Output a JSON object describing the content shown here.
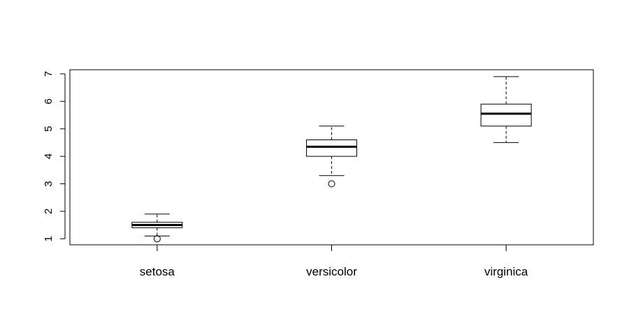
{
  "chart_data": {
    "type": "boxplot",
    "title": "",
    "xlabel": "",
    "ylabel": "",
    "ylim": [
      0.78,
      7.15
    ],
    "y_ticks": [
      1,
      2,
      3,
      4,
      5,
      6,
      7
    ],
    "categories": [
      "setosa",
      "versicolor",
      "virginica"
    ],
    "boxes": [
      {
        "category": "setosa",
        "whisker_low": 1.1,
        "q1": 1.4,
        "median": 1.5,
        "q3": 1.6,
        "whisker_high": 1.9,
        "outliers": [
          1.0
        ]
      },
      {
        "category": "versicolor",
        "whisker_low": 3.3,
        "q1": 4.0,
        "median": 4.35,
        "q3": 4.6,
        "whisker_high": 5.1,
        "outliers": [
          3.0
        ]
      },
      {
        "category": "virginica",
        "whisker_low": 4.5,
        "q1": 5.1,
        "median": 5.55,
        "q3": 5.9,
        "whisker_high": 6.9,
        "outliers": []
      }
    ],
    "grid": false,
    "legend": "none"
  }
}
